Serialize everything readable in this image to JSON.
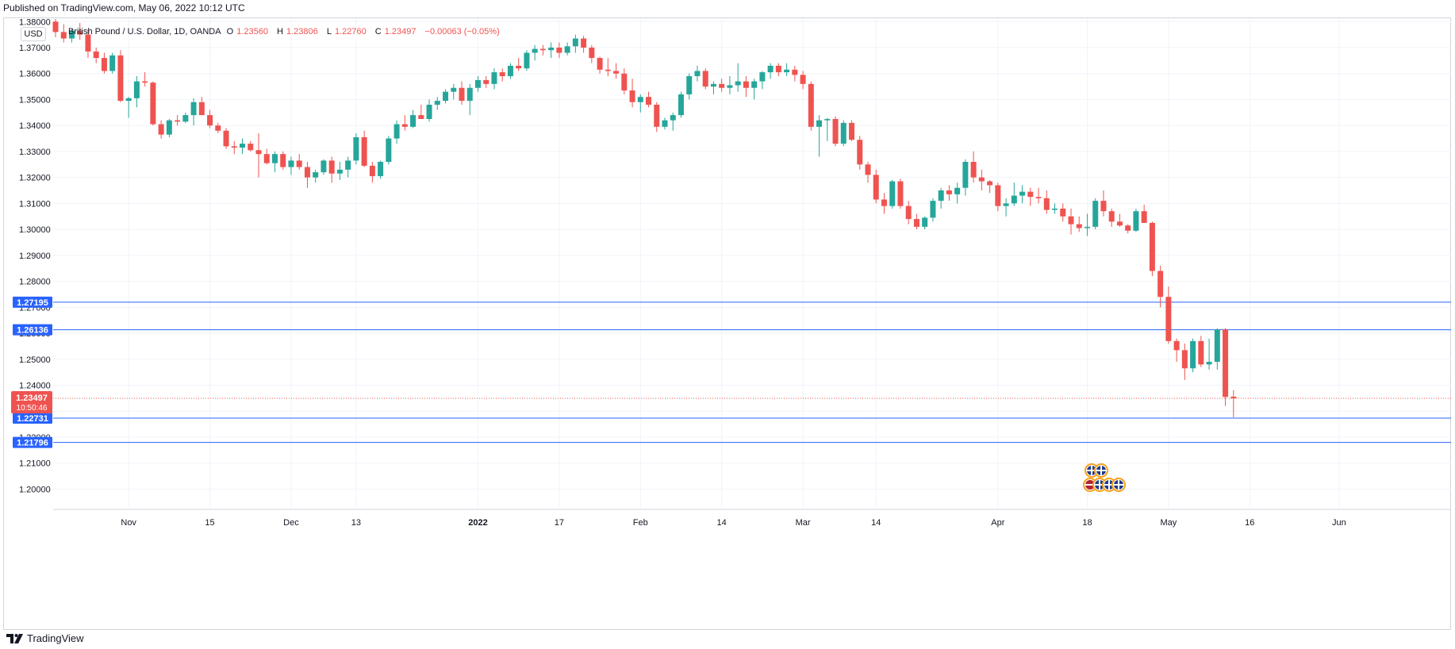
{
  "published": "Published on TradingView.com, May 06, 2022 10:12 UTC",
  "currency_badge": "USD",
  "legend": {
    "symbol": "British Pound / U.S. Dollar, 1D, OANDA",
    "open_label": "O",
    "open": "1.23560",
    "high_label": "H",
    "high": "1.23806",
    "low_label": "L",
    "low": "1.22760",
    "close_label": "C",
    "close": "1.23497",
    "change": "−0.00063 (−0.05%)"
  },
  "footer": {
    "brand": "TradingView",
    "logo_icon": "tradingview-logo-icon"
  },
  "colors": {
    "up": "#26a69a",
    "down": "#ef5350",
    "level_line": "#2962ff",
    "last_price": "#ef5350"
  },
  "chart_data": {
    "type": "candlestick",
    "title": "British Pound / U.S. Dollar, 1D, OANDA",
    "ylim": [
      1.1925,
      1.3813
    ],
    "y_ticks": [
      "1.38000",
      "1.37000",
      "1.36000",
      "1.35000",
      "1.34000",
      "1.33000",
      "1.32000",
      "1.31000",
      "1.30000",
      "1.29000",
      "1.28000",
      "1.27000",
      "1.26000",
      "1.25000",
      "1.24000",
      "1.23000",
      "1.22000",
      "1.21000",
      "1.20000"
    ],
    "x_ticks": [
      {
        "label": "Nov",
        "index": 9
      },
      {
        "label": "15",
        "index": 19
      },
      {
        "label": "Dec",
        "index": 29
      },
      {
        "label": "13",
        "index": 37
      },
      {
        "label": "2022",
        "index": 52
      },
      {
        "label": "17",
        "index": 62
      },
      {
        "label": "Feb",
        "index": 72
      },
      {
        "label": "14",
        "index": 82
      },
      {
        "label": "Mar",
        "index": 92
      },
      {
        "label": "14",
        "index": 101
      },
      {
        "label": "Apr",
        "index": 116
      },
      {
        "label": "18",
        "index": 127
      },
      {
        "label": "May",
        "index": 137
      },
      {
        "label": "16",
        "index": 147
      },
      {
        "label": "Jun",
        "index": 158
      }
    ],
    "horizontal_levels": [
      "1.27195",
      "1.26136",
      "1.22731",
      "1.21796"
    ],
    "last_price": {
      "value": "1.23497",
      "countdown": "10:50:46"
    },
    "grid": true,
    "legend_position": "top-left",
    "candles": [
      [
        1.38,
        1.381,
        1.374,
        1.376
      ],
      [
        1.376,
        1.379,
        1.372,
        1.3735
      ],
      [
        1.3735,
        1.377,
        1.372,
        1.3765
      ],
      [
        1.3765,
        1.3795,
        1.373,
        1.375
      ],
      [
        1.375,
        1.377,
        1.366,
        1.3685
      ],
      [
        1.3685,
        1.37,
        1.364,
        1.366
      ],
      [
        1.366,
        1.368,
        1.36,
        1.361
      ],
      [
        1.361,
        1.368,
        1.36,
        1.367
      ],
      [
        1.367,
        1.369,
        1.349,
        1.3495
      ],
      [
        1.3495,
        1.351,
        1.343,
        1.3505
      ],
      [
        1.3505,
        1.359,
        1.347,
        1.357
      ],
      [
        1.357,
        1.3605,
        1.355,
        1.3565
      ],
      [
        1.3565,
        1.357,
        1.34,
        1.3405
      ],
      [
        1.3405,
        1.342,
        1.335,
        1.3365
      ],
      [
        1.3365,
        1.3425,
        1.3355,
        1.342
      ],
      [
        1.342,
        1.344,
        1.34,
        1.3415
      ],
      [
        1.3415,
        1.345,
        1.341,
        1.344
      ],
      [
        1.344,
        1.3505,
        1.34,
        1.349
      ],
      [
        1.349,
        1.351,
        1.344,
        1.344
      ],
      [
        1.344,
        1.346,
        1.339,
        1.34
      ],
      [
        1.34,
        1.341,
        1.337,
        1.338
      ],
      [
        1.338,
        1.339,
        1.331,
        1.332
      ],
      [
        1.332,
        1.334,
        1.329,
        1.3315
      ],
      [
        1.3315,
        1.335,
        1.329,
        1.333
      ],
      [
        1.333,
        1.334,
        1.33,
        1.3305
      ],
      [
        1.3305,
        1.337,
        1.32,
        1.329
      ],
      [
        1.329,
        1.331,
        1.325,
        1.3255
      ],
      [
        1.3255,
        1.33,
        1.322,
        1.329
      ],
      [
        1.329,
        1.33,
        1.323,
        1.324
      ],
      [
        1.324,
        1.328,
        1.321,
        1.3265
      ],
      [
        1.3265,
        1.329,
        1.323,
        1.324
      ],
      [
        1.324,
        1.326,
        1.316,
        1.32
      ],
      [
        1.32,
        1.323,
        1.318,
        1.322
      ],
      [
        1.322,
        1.327,
        1.321,
        1.3265
      ],
      [
        1.3265,
        1.328,
        1.318,
        1.3215
      ],
      [
        1.3215,
        1.326,
        1.319,
        1.323
      ],
      [
        1.323,
        1.328,
        1.32,
        1.3265
      ],
      [
        1.3265,
        1.337,
        1.325,
        1.3355
      ],
      [
        1.3355,
        1.338,
        1.324,
        1.3245
      ],
      [
        1.3245,
        1.326,
        1.318,
        1.3205
      ],
      [
        1.3205,
        1.3265,
        1.3195,
        1.326
      ],
      [
        1.326,
        1.336,
        1.325,
        1.335
      ],
      [
        1.335,
        1.342,
        1.333,
        1.3405
      ],
      [
        1.3405,
        1.344,
        1.338,
        1.3395
      ],
      [
        1.3395,
        1.346,
        1.339,
        1.344
      ],
      [
        1.344,
        1.348,
        1.343,
        1.3425
      ],
      [
        1.3425,
        1.35,
        1.3415,
        1.348
      ],
      [
        1.348,
        1.351,
        1.346,
        1.3495
      ],
      [
        1.3495,
        1.354,
        1.3485,
        1.353
      ],
      [
        1.353,
        1.356,
        1.35,
        1.3545
      ],
      [
        1.3545,
        1.357,
        1.348,
        1.3495
      ],
      [
        1.3495,
        1.356,
        1.344,
        1.3545
      ],
      [
        1.3545,
        1.359,
        1.353,
        1.3575
      ],
      [
        1.3575,
        1.359,
        1.3545,
        1.356
      ],
      [
        1.356,
        1.362,
        1.354,
        1.3605
      ],
      [
        1.3605,
        1.362,
        1.357,
        1.359
      ],
      [
        1.359,
        1.364,
        1.358,
        1.363
      ],
      [
        1.363,
        1.366,
        1.361,
        1.362
      ],
      [
        1.362,
        1.369,
        1.361,
        1.368
      ],
      [
        1.368,
        1.371,
        1.365,
        1.3695
      ],
      [
        1.3695,
        1.371,
        1.367,
        1.369
      ],
      [
        1.369,
        1.372,
        1.366,
        1.37
      ],
      [
        1.37,
        1.372,
        1.366,
        1.368
      ],
      [
        1.368,
        1.372,
        1.367,
        1.3705
      ],
      [
        1.3705,
        1.375,
        1.368,
        1.3735
      ],
      [
        1.3735,
        1.3745,
        1.368,
        1.37
      ],
      [
        1.37,
        1.371,
        1.364,
        1.366
      ],
      [
        1.366,
        1.3665,
        1.36,
        1.3615
      ],
      [
        1.3615,
        1.366,
        1.359,
        1.361
      ],
      [
        1.361,
        1.364,
        1.358,
        1.36
      ],
      [
        1.36,
        1.362,
        1.352,
        1.3535
      ],
      [
        1.3535,
        1.358,
        1.347,
        1.349
      ],
      [
        1.349,
        1.352,
        1.345,
        1.351
      ],
      [
        1.351,
        1.353,
        1.347,
        1.348
      ],
      [
        1.348,
        1.349,
        1.3375,
        1.3395
      ],
      [
        1.3395,
        1.343,
        1.3385,
        1.342
      ],
      [
        1.342,
        1.345,
        1.338,
        1.344
      ],
      [
        1.344,
        1.353,
        1.343,
        1.352
      ],
      [
        1.352,
        1.36,
        1.35,
        1.359
      ],
      [
        1.359,
        1.363,
        1.357,
        1.361
      ],
      [
        1.361,
        1.362,
        1.354,
        1.355
      ],
      [
        1.355,
        1.357,
        1.352,
        1.356
      ],
      [
        1.356,
        1.358,
        1.353,
        1.3545
      ],
      [
        1.3545,
        1.359,
        1.352,
        1.3555
      ],
      [
        1.3555,
        1.364,
        1.353,
        1.357
      ],
      [
        1.357,
        1.359,
        1.351,
        1.3545
      ],
      [
        1.3545,
        1.358,
        1.35,
        1.357
      ],
      [
        1.357,
        1.361,
        1.354,
        1.3605
      ],
      [
        1.3605,
        1.364,
        1.358,
        1.363
      ],
      [
        1.363,
        1.364,
        1.359,
        1.3605
      ],
      [
        1.3605,
        1.364,
        1.359,
        1.3615
      ],
      [
        1.3615,
        1.363,
        1.357,
        1.3595
      ],
      [
        1.3595,
        1.361,
        1.354,
        1.356
      ],
      [
        1.356,
        1.357,
        1.338,
        1.3395
      ],
      [
        1.3395,
        1.344,
        1.328,
        1.342
      ],
      [
        1.342,
        1.343,
        1.334,
        1.3425
      ],
      [
        1.3425,
        1.3435,
        1.332,
        1.333
      ],
      [
        1.333,
        1.342,
        1.332,
        1.341
      ],
      [
        1.341,
        1.342,
        1.334,
        1.3345
      ],
      [
        1.3345,
        1.336,
        1.323,
        1.325
      ],
      [
        1.325,
        1.326,
        1.318,
        1.321
      ],
      [
        1.321,
        1.323,
        1.31,
        1.3115
      ],
      [
        1.3115,
        1.314,
        1.306,
        1.309
      ],
      [
        1.309,
        1.319,
        1.308,
        1.3185
      ],
      [
        1.3185,
        1.3195,
        1.308,
        1.309
      ],
      [
        1.309,
        1.311,
        1.302,
        1.304
      ],
      [
        1.304,
        1.306,
        1.3,
        1.301
      ],
      [
        1.301,
        1.305,
        1.3,
        1.3045
      ],
      [
        1.3045,
        1.312,
        1.303,
        1.311
      ],
      [
        1.311,
        1.316,
        1.308,
        1.315
      ],
      [
        1.315,
        1.317,
        1.311,
        1.3135
      ],
      [
        1.3135,
        1.318,
        1.31,
        1.316
      ],
      [
        1.316,
        1.327,
        1.313,
        1.326
      ],
      [
        1.326,
        1.33,
        1.318,
        1.32
      ],
      [
        1.32,
        1.323,
        1.315,
        1.3185
      ],
      [
        1.3185,
        1.319,
        1.314,
        1.317
      ],
      [
        1.317,
        1.318,
        1.307,
        1.309
      ],
      [
        1.309,
        1.312,
        1.305,
        1.31
      ],
      [
        1.31,
        1.318,
        1.309,
        1.313
      ],
      [
        1.313,
        1.317,
        1.31,
        1.3145
      ],
      [
        1.3145,
        1.316,
        1.309,
        1.3125
      ],
      [
        1.3125,
        1.316,
        1.31,
        1.312
      ],
      [
        1.312,
        1.315,
        1.306,
        1.3075
      ],
      [
        1.3075,
        1.31,
        1.306,
        1.308
      ],
      [
        1.308,
        1.31,
        1.303,
        1.305
      ],
      [
        1.305,
        1.308,
        1.298,
        1.302
      ],
      [
        1.302,
        1.305,
        1.299,
        1.3005
      ],
      [
        1.3005,
        1.306,
        1.2975,
        1.301
      ],
      [
        1.301,
        1.312,
        1.3,
        1.311
      ],
      [
        1.311,
        1.315,
        1.305,
        1.307
      ],
      [
        1.307,
        1.308,
        1.301,
        1.303
      ],
      [
        1.303,
        1.306,
        1.301,
        1.3015
      ],
      [
        1.3015,
        1.302,
        1.2985,
        1.2995
      ],
      [
        1.2995,
        1.308,
        1.299,
        1.307
      ],
      [
        1.307,
        1.3095,
        1.304,
        1.3025
      ],
      [
        1.3025,
        1.303,
        1.282,
        1.284
      ],
      [
        1.284,
        1.286,
        1.27,
        1.274
      ],
      [
        1.274,
        1.278,
        1.256,
        1.257
      ],
      [
        1.257,
        1.258,
        1.249,
        1.2535
      ],
      [
        1.2535,
        1.256,
        1.242,
        1.2465
      ],
      [
        1.2465,
        1.258,
        1.245,
        1.257
      ],
      [
        1.257,
        1.259,
        1.247,
        1.248
      ],
      [
        1.248,
        1.258,
        1.246,
        1.249
      ],
      [
        1.249,
        1.262,
        1.246,
        1.2615
      ],
      [
        1.2615,
        1.262,
        1.232,
        1.2355
      ],
      [
        1.2356,
        1.2381,
        1.2276,
        1.23497
      ]
    ]
  }
}
